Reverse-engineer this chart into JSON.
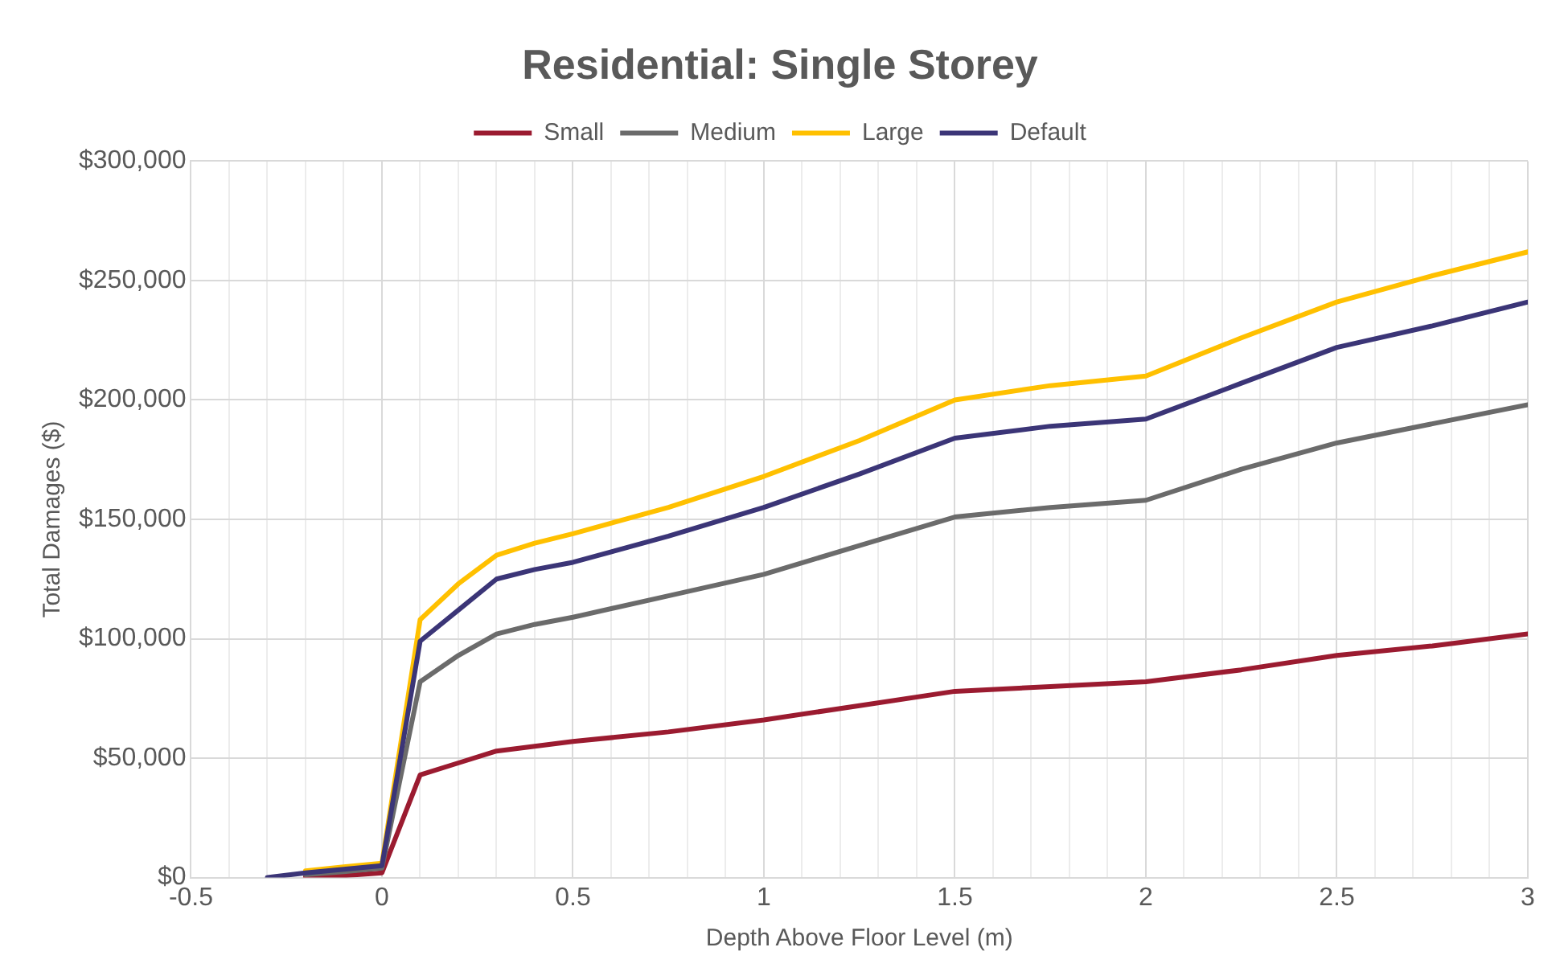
{
  "chart_data": {
    "type": "line",
    "title": "Residential: Single Storey",
    "xlabel": "Depth Above Floor Level (m)",
    "ylabel": "Total Damages ($)",
    "x": [
      -0.3,
      -0.2,
      -0.1,
      0,
      0.1,
      0.2,
      0.3,
      0.4,
      0.5,
      0.75,
      1,
      1.25,
      1.5,
      1.75,
      2,
      2.25,
      2.5,
      2.75,
      3
    ],
    "series": [
      {
        "name": "Small",
        "color": "#9b1b30",
        "values": [
          null,
          300,
          800,
          2000,
          43000,
          48000,
          53000,
          55000,
          57000,
          61000,
          66000,
          72000,
          78000,
          80000,
          82000,
          87000,
          93000,
          97000,
          102000
        ]
      },
      {
        "name": "Medium",
        "color": "#6b6b6b",
        "values": [
          null,
          1200,
          2500,
          4000,
          82000,
          93000,
          102000,
          106000,
          109000,
          118000,
          127000,
          139000,
          151000,
          155000,
          158000,
          171000,
          182000,
          190000,
          198000
        ]
      },
      {
        "name": "Large",
        "color": "#ffc000",
        "values": [
          null,
          2800,
          4500,
          6000,
          108000,
          123000,
          135000,
          140000,
          144000,
          155000,
          168000,
          183000,
          200000,
          206000,
          210000,
          226000,
          241000,
          252000,
          262000
        ]
      },
      {
        "name": "Default",
        "color": "#3b3577",
        "values": [
          0,
          2000,
          3500,
          5000,
          99000,
          112000,
          125000,
          129000,
          132000,
          143000,
          155000,
          169000,
          184000,
          189000,
          192000,
          207000,
          222000,
          231000,
          241000
        ]
      }
    ],
    "xlim": [
      -0.5,
      3
    ],
    "xticks": [
      {
        "value": -0.5,
        "label": "-0.5"
      },
      {
        "value": -0.4,
        "label": null
      },
      {
        "value": -0.3,
        "label": null
      },
      {
        "value": -0.2,
        "label": null
      },
      {
        "value": -0.1,
        "label": null
      },
      0,
      {
        "value": 0.1,
        "label": null
      },
      {
        "value": 0.2,
        "label": null
      },
      {
        "value": 0.3,
        "label": null
      },
      {
        "value": 0.4,
        "label": null
      },
      0.5,
      {
        "value": 0.6,
        "label": null
      },
      {
        "value": 0.7,
        "label": null
      },
      {
        "value": 0.8,
        "label": null
      },
      {
        "value": 0.9,
        "label": null
      },
      1,
      {
        "value": 1.1,
        "label": null
      },
      {
        "value": 1.2,
        "label": null
      },
      {
        "value": 1.3,
        "label": null
      },
      {
        "value": 1.4,
        "label": null
      },
      1.5,
      {
        "value": 1.6,
        "label": null
      },
      {
        "value": 1.7,
        "label": null
      },
      {
        "value": 1.8,
        "label": null
      },
      {
        "value": 1.9,
        "label": null
      },
      2,
      {
        "value": 2.1,
        "label": null
      },
      {
        "value": 2.2,
        "label": null
      },
      {
        "value": 2.3,
        "label": null
      },
      {
        "value": 2.4,
        "label": null
      },
      2.5,
      {
        "value": 2.6,
        "label": null
      },
      {
        "value": 2.7,
        "label": null
      },
      {
        "value": 2.8,
        "label": null
      },
      {
        "value": 2.9,
        "label": null
      },
      3
    ],
    "ylim": [
      0,
      300000
    ],
    "yticks": [
      {
        "value": 0,
        "label": "$0"
      },
      {
        "value": 50000,
        "label": "$50,000"
      },
      {
        "value": 100000,
        "label": "$100,000"
      },
      {
        "value": 150000,
        "label": "$150,000"
      },
      {
        "value": 200000,
        "label": "$200,000"
      },
      {
        "value": 250000,
        "label": "$250,000"
      },
      {
        "value": 300000,
        "label": "$300,000"
      }
    ],
    "grid": true,
    "legend": "top",
    "marker": "none",
    "line_style": "solid"
  }
}
